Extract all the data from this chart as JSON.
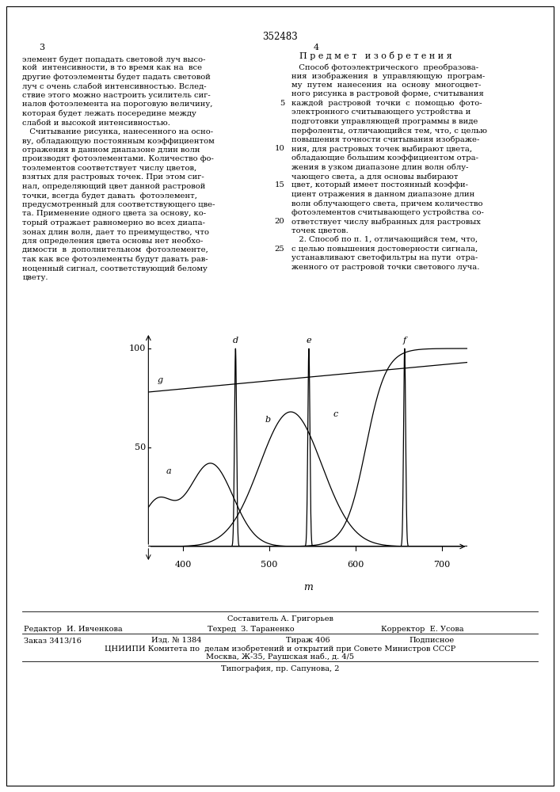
{
  "title": "352483",
  "col3_num": "3",
  "col4_num": "4",
  "predmet_title": "П р е д м е т   и з о б р е т е н и я",
  "xlabel": "m",
  "xmin": 360,
  "xmax": 730,
  "ymin": 0,
  "ymax": 108,
  "curve_a_label": "a",
  "curve_b_label": "b",
  "curve_c_label": "c",
  "curve_g_label": "g",
  "spike_d_label": "d",
  "spike_e_label": "e",
  "spike_f_label": "f",
  "color": "#000000",
  "bg_color": "#ffffff",
  "col3_text_lines": [
    "элемент будет попадать световой луч высо-",
    "кой  интенсивности, в то время как на  все",
    "другие фотоэлементы будет падать световой",
    "луч с очень слабой интенсивностью. Вслед-",
    "ствие этого можно настроить усилитель сиг-",
    "налов фотоэлемента на пороговую величину,",
    "которая будет лежать посередине между",
    "слабой и высокой интенсивностью.",
    "   Считывание рисунка, нанесенного на осно-",
    "ву, обладающую постоянным коэффициентом",
    "отражения в данном диапазоне длин волн",
    "производят фотоэлементами. Количество фо-",
    "тоэлементов соответствует числу цветов,",
    "взятых для растровых точек. При этом сиг-",
    "нал, определяющий цвет данной растровой",
    "точки, всегда будет давать  фотоэлемент,",
    "предусмотренный для соответствующего цве-",
    "та. Применение одного цвета за основу, ко-",
    "торый отражает равномерно во всех диапа-",
    "зонах длин волн, дает то преимущество, что",
    "для определения цвета основы нет необхо-",
    "димости  в  дополнительном  фотоэлементе,",
    "так как все фотоэлементы будут давать рав-",
    "ноценный сигнал, соответствующий белому",
    "цвету."
  ],
  "col4_text_lines": [
    "   Способ фотоэлектрического  преобразова-",
    "ния  изображения  в  управляющую  програм-",
    "му  путем  нанесения  на  основу  многоцвет-",
    "ного рисунка в растровой форме, считывания",
    "каждой  растровой  точки  с  помощью  фото-",
    "электронного считывающего устройства и",
    "подготовки управляющей программы в виде",
    "перфоленты, отличающийся тем, что, с целью",
    "повышения точности считывания изображе-",
    "ния, для растровых точек выбирают цвета,",
    "обладающие большим коэффициентом отра-",
    "жения в узком диапазоне длин волн облу-",
    "чающего света, а для основы выбирают",
    "цвет, который имеет постоянный коэффи-",
    "циент отражения в данном диапазоне длин",
    "волн облучающего света, причем количество",
    "фотоэлементов считывающего устройства со-",
    "ответствует числу выбранных для растровых",
    "точек цветов.",
    "   2. Способ по п. 1, отличающийся тем, что,",
    "с целью повышения достоверности сигнала,",
    "устанавливают светофильтры на пути  отра-",
    "женного от растровой точки светового луча."
  ],
  "line_numbers": [
    "5",
    "10",
    "15",
    "20",
    "25"
  ],
  "bottom_author": "Составитель А. Григорьев",
  "bottom_editor": "Редактор  И. Ивченкова",
  "bottom_techred": "Техред  З. Тараненко",
  "bottom_corrector": "Корректор  Е. Усова",
  "bottom_zakaz": "Заказ 3413/16",
  "bottom_izd": "Изд. № 1384",
  "bottom_tirazh": "Тираж 406",
  "bottom_podpisnoe": "Подписное",
  "bottom_cniipи": "ЦНИИПИ Комитета по  делам изобретений и открытий при Совете Министров СССР",
  "bottom_moskva": "Москва, Ж-35, Раушская наб., д. 4/5",
  "bottom_tipografia": "Типография, пр. Сапунова, 2"
}
